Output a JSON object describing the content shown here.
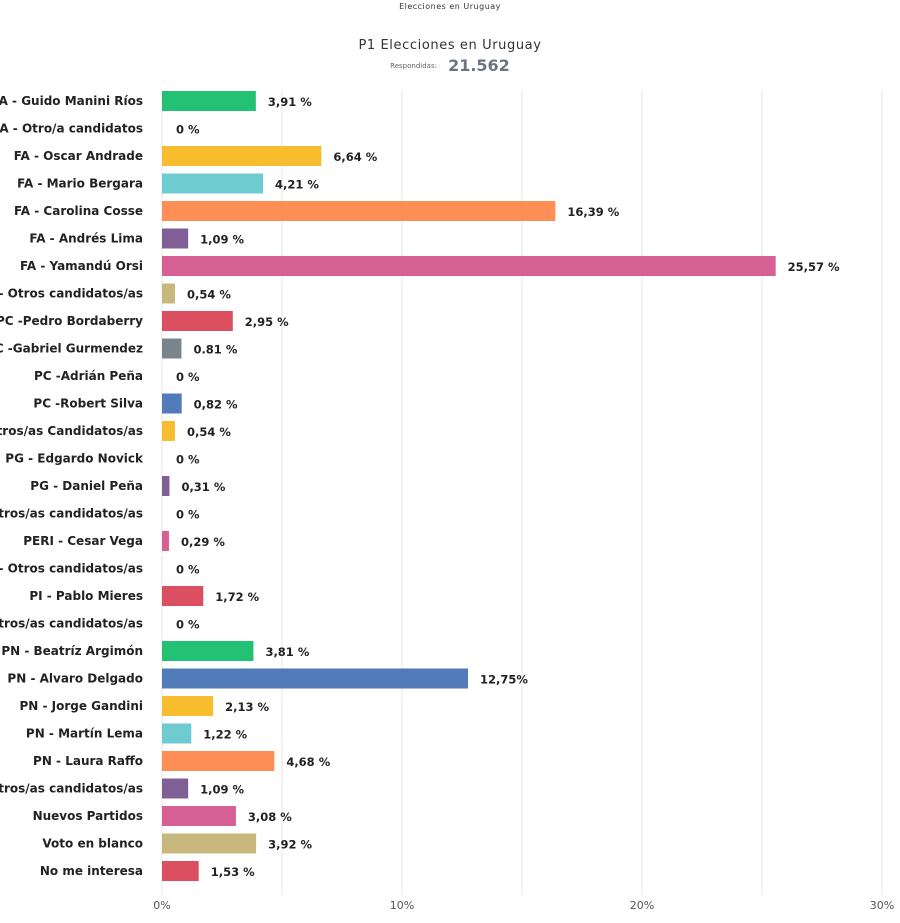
{
  "header": {
    "top_caption": "Elecciones en Uruguay",
    "title": "P1 Elecciones en Uruguay",
    "responses_label": "Respondidas:",
    "responses_count": "21.562"
  },
  "chart_data": {
    "type": "bar",
    "orientation": "horizontal",
    "title": "P1 Elecciones en Uruguay",
    "xlabel": "",
    "ylabel": "",
    "xlim": [
      0,
      30
    ],
    "x_ticks": [
      "0%",
      "10%",
      "20%",
      "30%"
    ],
    "grid": true,
    "categories": [
      "CA - Guido Manini Ríos",
      "CA - Otro/a candidatos",
      "FA - Oscar Andrade",
      "FA - Mario Bergara",
      "FA - Carolina Cosse",
      "FA - Andrés Lima",
      "FA - Yamandú Orsi",
      "FA - Otros candidatos/as",
      "PC -Pedro Bordaberry",
      "PC -Gabriel Gurmendez",
      "PC -Adrián Peña",
      "PC -Robert Silva",
      "-Otros/as Candidatos/as",
      "PG - Edgardo Novick",
      "PG - Daniel Peña",
      "- otros/as candidatos/as",
      "PERI - Cesar Vega",
      "ERI - Otros candidatos/as",
      "PI - Pablo Mieres",
      "- Otros/as candidatos/as",
      "PN - Beatríz Argimón",
      "PN - Alvaro Delgado",
      "PN -  Jorge Gandini",
      "PN - Martín Lema",
      "PN - Laura Raffo",
      "- otros/as candidatos/as",
      "Nuevos Partidos",
      "Voto en blanco",
      "No me interesa"
    ],
    "values": [
      3.91,
      0,
      6.64,
      4.21,
      16.39,
      1.09,
      25.57,
      0.54,
      2.95,
      0.81,
      0,
      0.82,
      0.54,
      0,
      0.31,
      0,
      0.29,
      0,
      1.72,
      0,
      3.81,
      12.75,
      2.13,
      1.22,
      4.68,
      1.09,
      3.08,
      3.92,
      1.53
    ],
    "value_labels": [
      "3,91 %",
      "0 %",
      "6,64 %",
      "4,21 %",
      "16,39 %",
      "1,09 %",
      "25,57 %",
      "0,54 %",
      "2,95 %",
      "0.81 %",
      "0 %",
      "0,82 %",
      "0,54 %",
      "0 %",
      "0,31 %",
      "0 %",
      "0,29 %",
      "0 %",
      "1,72 %",
      "0 %",
      "3,81 %",
      "12,75%",
      "2,13 %",
      "1,22 %",
      "4,68 %",
      "1,09 %",
      "3,08 %",
      "3,92 %",
      "1,53 %"
    ],
    "colors": [
      "#22c174",
      "#22c174",
      "#f7bd2f",
      "#6ecbd0",
      "#fd8e56",
      "#7f5f96",
      "#d65f93",
      "#c9b87e",
      "#dc4f61",
      "#79858d",
      "#79858d",
      "#517bb9",
      "#f7bd2f",
      "#7f5f96",
      "#7f5f96",
      "#d65f93",
      "#d65f93",
      "#d65f93",
      "#dc4f61",
      "#dc4f61",
      "#22c174",
      "#517bb9",
      "#f7bd2f",
      "#6ecbd0",
      "#fd8e56",
      "#7f5f96",
      "#d65f93",
      "#c9b87e",
      "#dc4f61"
    ]
  }
}
